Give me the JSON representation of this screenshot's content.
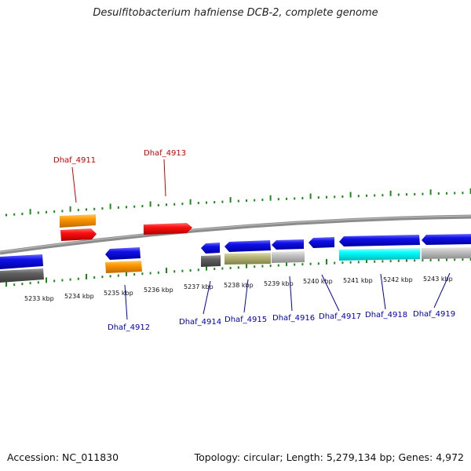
{
  "title": "Desulfitobacterium hafniense DCB-2, complete genome",
  "footer": {
    "accession": "Accession: NC_011830",
    "summary": "Topology: circular; Length: 5,279,134 bp; Genes: 4,972"
  },
  "scale_labels": [
    "5233 kbp",
    "5234 kbp",
    "5235 kbp",
    "5236 kbp",
    "5237 kbp",
    "5238 kbp",
    "5239 kbp",
    "5240 kbp",
    "5241 kbp",
    "5242 kbp",
    "5243 kbp"
  ],
  "gene_labels": {
    "dhaf_4911": "Dhaf_4911",
    "dhaf_4912": "Dhaf_4912",
    "dhaf_4913": "Dhaf_4913",
    "dhaf_4914": "Dhaf_4914",
    "dhaf_4915": "Dhaf_4915",
    "dhaf_4916": "Dhaf_4916",
    "dhaf_4917": "Dhaf_4917",
    "dhaf_4918": "Dhaf_4918",
    "dhaf_4919": "Dhaf_4919"
  },
  "colors": {
    "backbone": "#8c8c8c",
    "tick": "#1a8a1a",
    "red": "#ff1010",
    "orange": "#ff9900",
    "blue": "#1010e8",
    "dark_gray": "#606060",
    "light_gray": "#bcbcbc",
    "olive": "#b8b878",
    "cyan": "#00ffff",
    "label_red": "#cc0000",
    "label_blue": "#0000b0"
  }
}
